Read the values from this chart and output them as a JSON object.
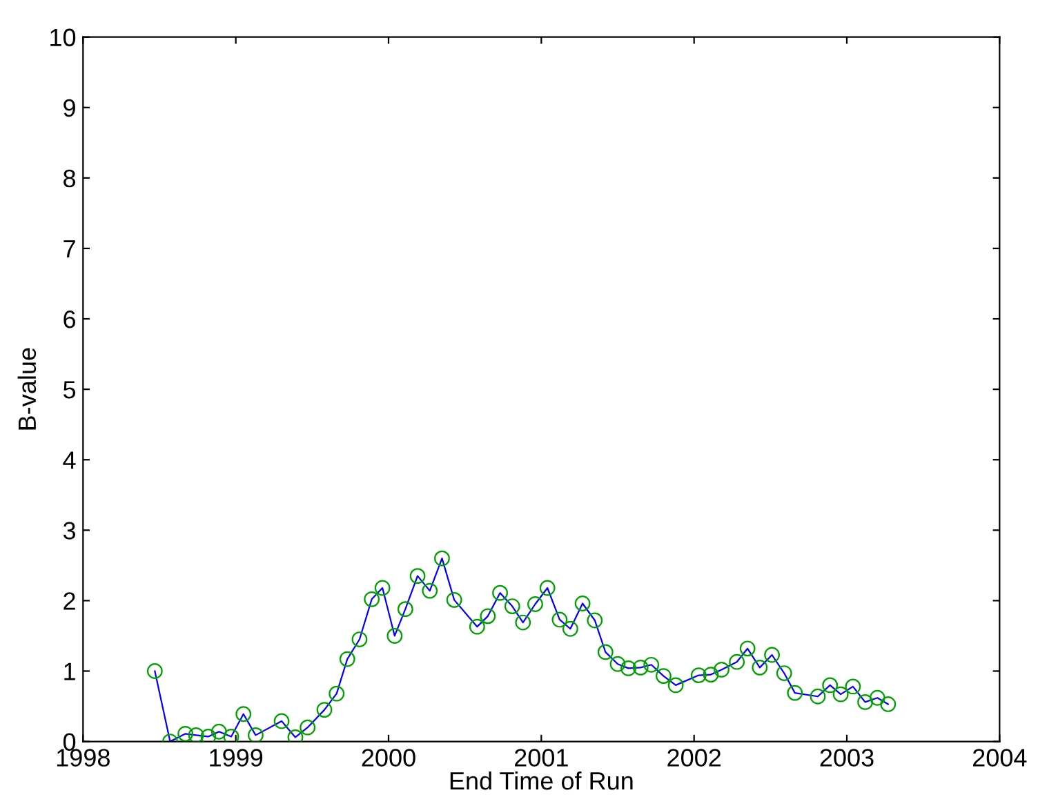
{
  "chart_data": {
    "type": "line",
    "xlabel": "End Time of Run",
    "ylabel": "B-value",
    "x": [
      1998.47,
      1998.57,
      1998.67,
      1998.74,
      1998.82,
      1998.89,
      1998.97,
      1999.05,
      1999.13,
      1999.3,
      1999.39,
      1999.47,
      1999.58,
      1999.66,
      1999.73,
      1999.81,
      1999.89,
      1999.96,
      2000.04,
      2000.11,
      2000.19,
      2000.27,
      2000.35,
      2000.43,
      2000.58,
      2000.65,
      2000.73,
      2000.81,
      2000.88,
      2000.96,
      2001.04,
      2001.12,
      2001.19,
      2001.27,
      2001.35,
      2001.42,
      2001.5,
      2001.57,
      2001.65,
      2001.72,
      2001.8,
      2001.88,
      2002.03,
      2002.11,
      2002.18,
      2002.28,
      2002.35,
      2002.43,
      2002.51,
      2002.59,
      2002.66,
      2002.81,
      2002.89,
      2002.96,
      2003.04,
      2003.12,
      2003.2,
      2003.27
    ],
    "series": [
      {
        "color": "#0000ff",
        "marker": "none",
        "values": [
          1.0,
          0.0,
          0.11,
          0.09,
          0.07,
          0.14,
          0.07,
          0.39,
          0.09,
          0.29,
          0.06,
          0.2,
          0.45,
          0.68,
          1.17,
          1.45,
          2.02,
          2.18,
          1.5,
          1.88,
          2.35,
          2.14,
          2.6,
          2.01,
          1.63,
          1.78,
          2.11,
          1.92,
          1.69,
          1.95,
          2.18,
          1.73,
          1.6,
          1.96,
          1.72,
          1.27,
          1.1,
          1.04,
          1.05,
          1.09,
          0.93,
          0.8,
          0.94,
          0.95,
          1.02,
          1.13,
          1.32,
          1.05,
          1.23,
          0.97,
          0.69,
          0.64,
          0.8,
          0.67,
          0.78,
          0.56,
          0.62,
          0.53
        ]
      },
      {
        "type": "scatter",
        "color": "#00a000",
        "marker": "circle",
        "values": [
          1.0,
          0.0,
          0.11,
          0.09,
          0.07,
          0.14,
          0.07,
          0.39,
          0.09,
          0.29,
          0.06,
          0.2,
          0.45,
          0.68,
          1.17,
          1.45,
          2.02,
          2.18,
          1.5,
          1.88,
          2.35,
          2.14,
          2.6,
          2.01,
          1.63,
          1.78,
          2.11,
          1.92,
          1.69,
          1.95,
          2.18,
          1.73,
          1.6,
          1.96,
          1.72,
          1.27,
          1.1,
          1.04,
          1.05,
          1.09,
          0.93,
          0.8,
          0.94,
          0.95,
          1.02,
          1.13,
          1.32,
          1.05,
          1.23,
          0.97,
          0.69,
          0.64,
          0.8,
          0.67,
          0.78,
          0.56,
          0.62,
          0.53
        ]
      }
    ],
    "xlim": [
      1998,
      2004
    ],
    "xticks": [
      1998,
      1999,
      2000,
      2001,
      2002,
      2003,
      2004
    ],
    "ylim": [
      0,
      10
    ],
    "yticks": [
      0,
      1,
      2,
      3,
      4,
      5,
      6,
      7,
      8,
      9,
      10
    ],
    "grid": false,
    "legend": false
  }
}
